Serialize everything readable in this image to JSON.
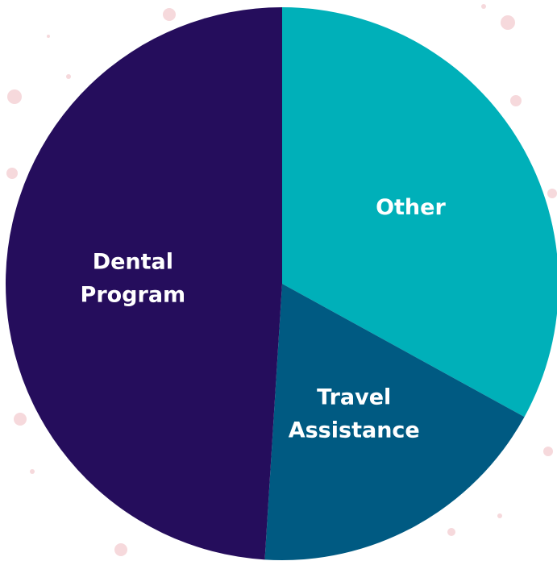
{
  "chart_data": {
    "type": "pie",
    "categories": [
      "Other",
      "Travel Assistance",
      "Dental Program"
    ],
    "values": [
      33,
      18,
      49
    ],
    "colors": [
      "#00b0b9",
      "#005a82",
      "#250d5c"
    ],
    "start_angle": 0,
    "direction": "clockwise"
  }
}
